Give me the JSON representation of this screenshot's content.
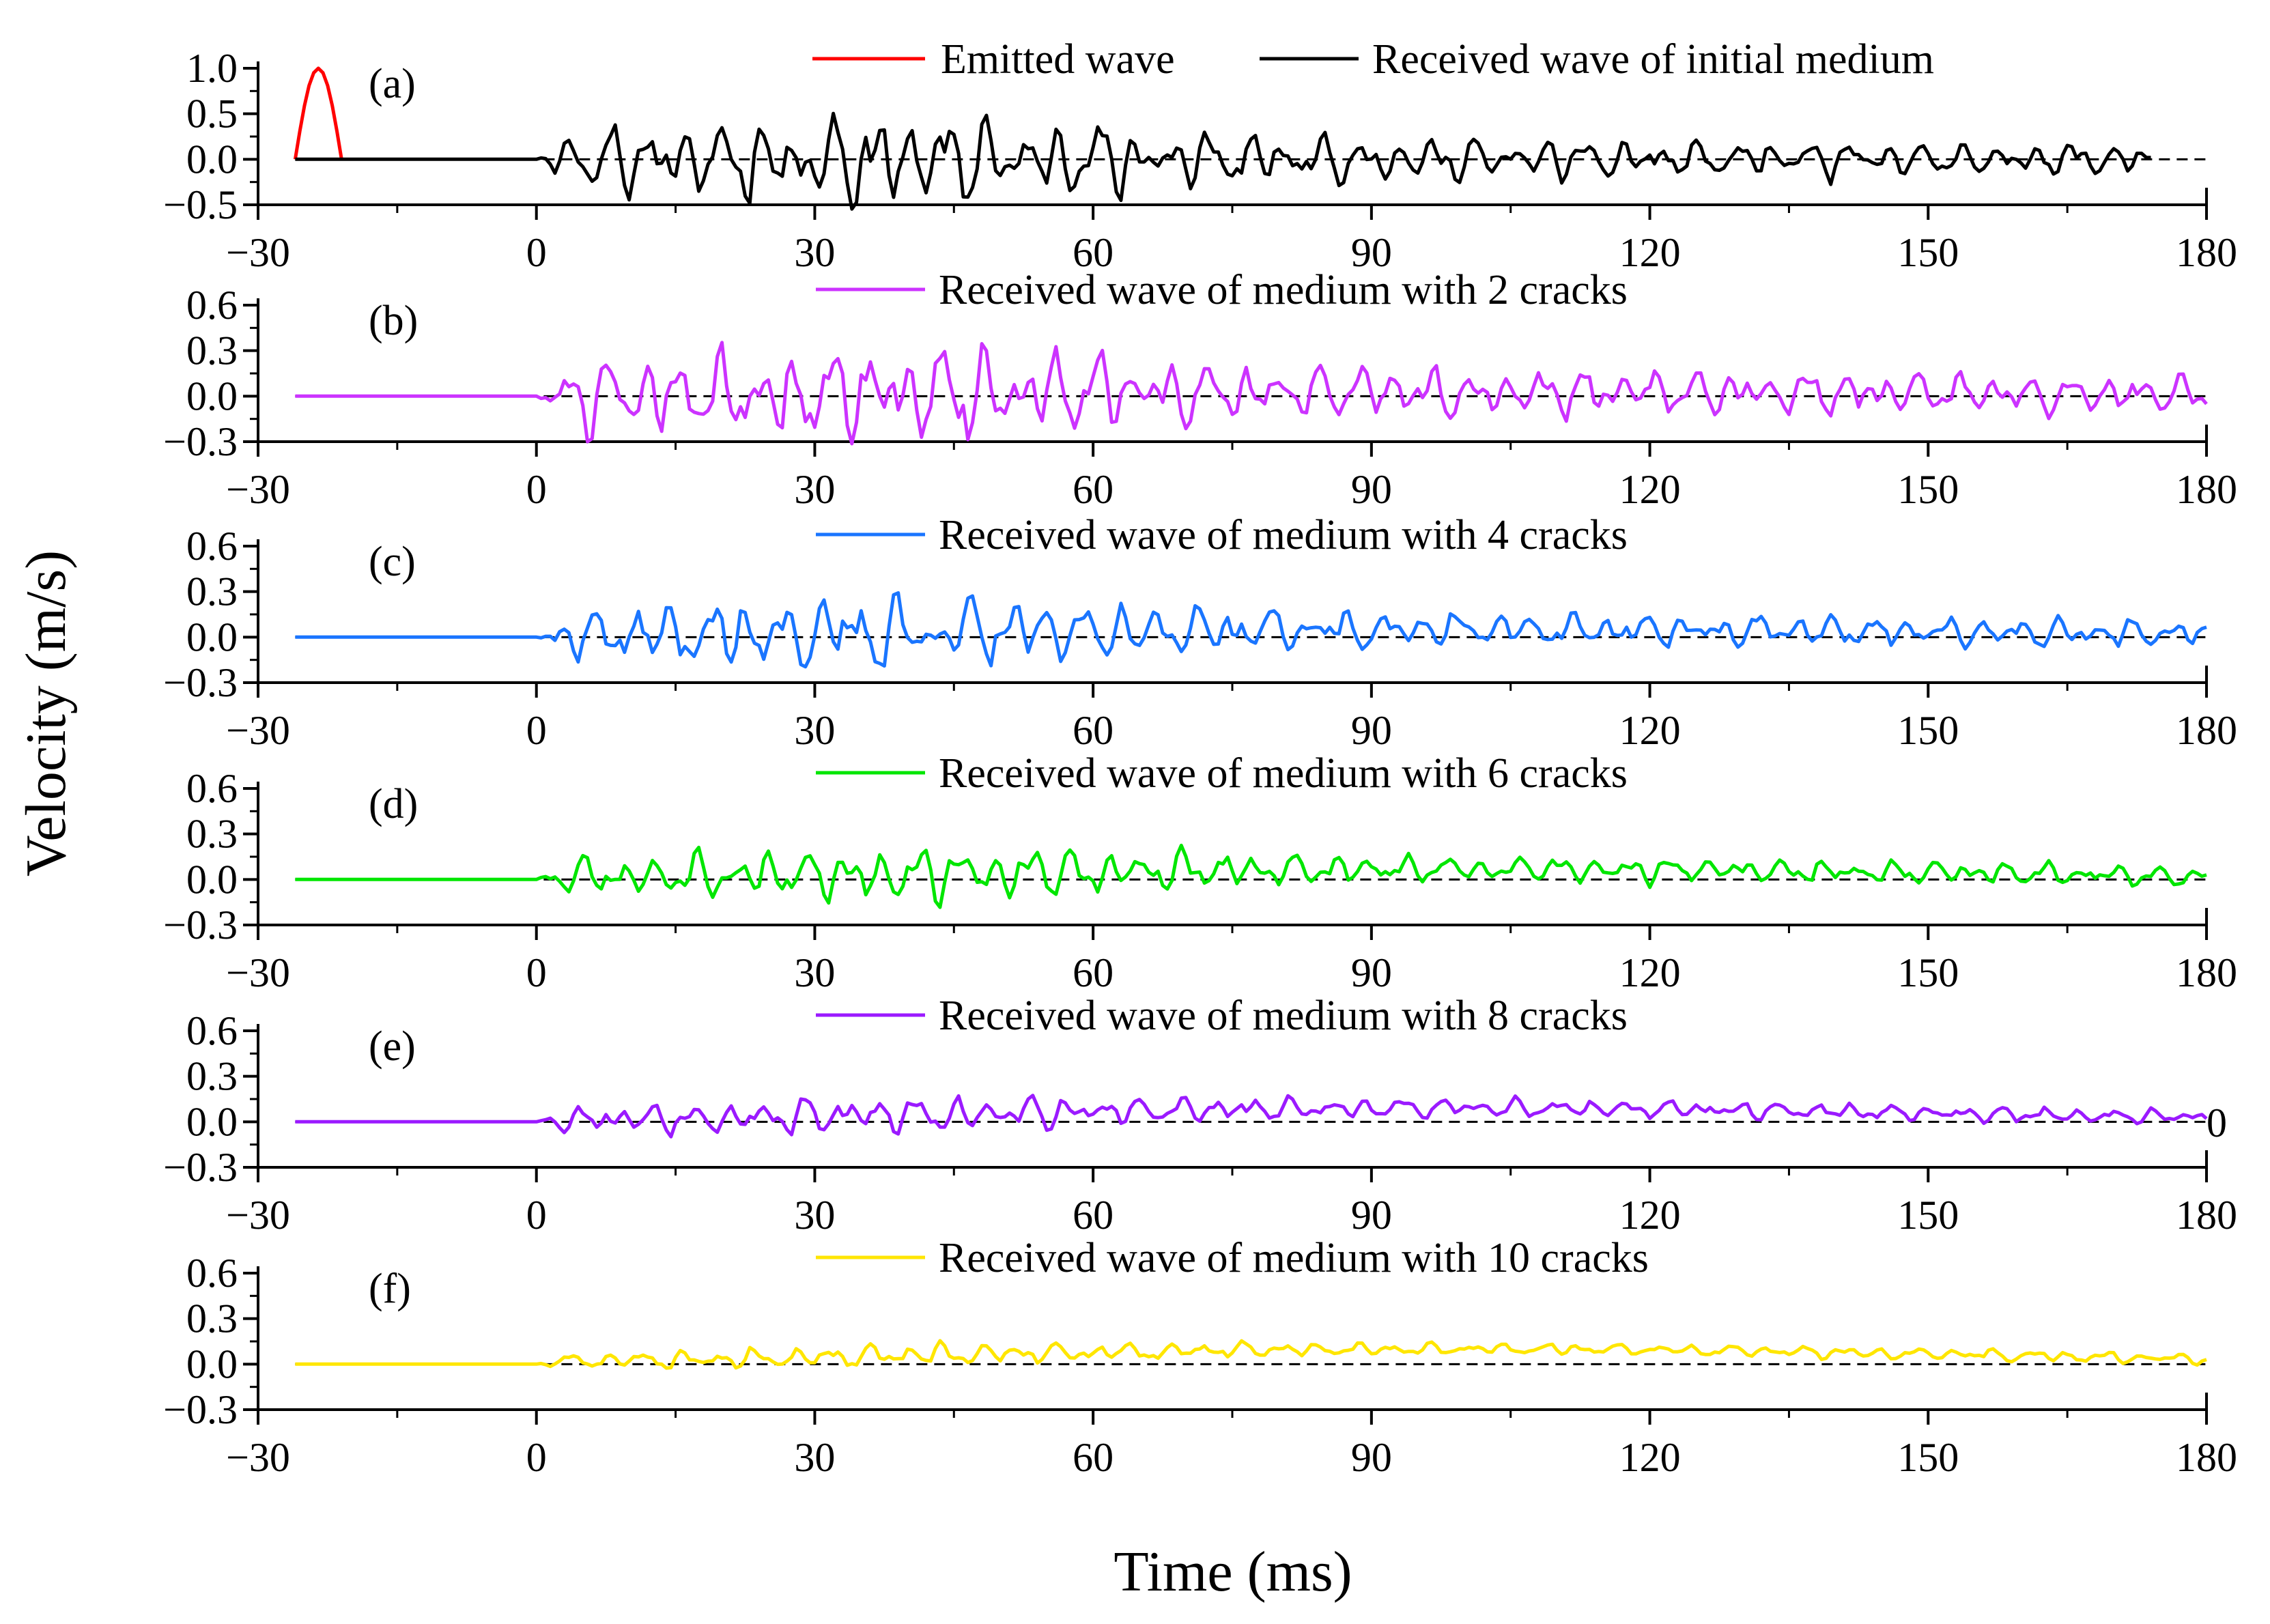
{
  "chart_data": {
    "type": "line",
    "xlabel": "Time (ms)",
    "ylabel": "Velocity (m/s)",
    "xlim": [
      -30,
      180
    ],
    "xticks": [
      -30,
      0,
      30,
      60,
      90,
      120,
      150,
      180
    ],
    "stray_label": "0",
    "panels": [
      {
        "tag": "(a)",
        "ylim": [
          -0.5,
          1.0
        ],
        "yticks": [
          -0.5,
          0.0,
          0.5,
          1.0
        ],
        "ytick_labels": [
          "−0.5",
          "0.0",
          "0.5",
          "1.0"
        ],
        "legend": [
          "Emitted wave",
          "Received wave of initial medium"
        ],
        "series": [
          {
            "name": "Emitted wave",
            "color": "#ff0000",
            "x": [
              -26.0,
              -25.5,
              -25.0,
              -24.5,
              -24.0,
              -23.5,
              -23.0,
              -22.5,
              -22.0,
              -21.5,
              -21.0
            ],
            "values": [
              0.0,
              0.31,
              0.59,
              0.81,
              0.95,
              1.0,
              0.95,
              0.81,
              0.59,
              0.31,
              0.0
            ]
          },
          {
            "name": "Received wave of initial medium",
            "color": "#000000",
            "x_start": -26,
            "x_end": 174,
            "onset": 0,
            "amp": 0.5,
            "decay": 0.45,
            "bias": 0.0,
            "bias_pos": 0.5,
            "seed": 11
          }
        ]
      },
      {
        "tag": "(b)",
        "ylim": [
          -0.3,
          0.6
        ],
        "yticks": [
          -0.3,
          0.0,
          0.3,
          0.6
        ],
        "ytick_labels": [
          "−0.3",
          "0.0",
          "0.3",
          "0.6"
        ],
        "legend": [
          "Received wave of medium with 2 cracks"
        ],
        "series": [
          {
            "name": "Received wave of medium with 2 cracks",
            "color": "#cc33ff",
            "x_start": -26,
            "x_end": 180,
            "onset": 0,
            "amp": 0.32,
            "decay": 0.35,
            "bias": 0.03,
            "bias_pos": 0.55,
            "seed": 23
          }
        ]
      },
      {
        "tag": "(c)",
        "ylim": [
          -0.3,
          0.6
        ],
        "yticks": [
          -0.3,
          0.0,
          0.3,
          0.6
        ],
        "ytick_labels": [
          "−0.3",
          "0.0",
          "0.3",
          "0.6"
        ],
        "legend": [
          "Received wave of medium with 4 cracks"
        ],
        "series": [
          {
            "name": "Received wave of medium with 4 cracks",
            "color": "#1a75ff",
            "x_start": -26,
            "x_end": 180,
            "onset": 0,
            "amp": 0.24,
            "decay": 0.4,
            "bias": 0.05,
            "bias_pos": 0.6,
            "seed": 37
          }
        ]
      },
      {
        "tag": "(d)",
        "ylim": [
          -0.3,
          0.6
        ],
        "yticks": [
          -0.3,
          0.0,
          0.3,
          0.6
        ],
        "ytick_labels": [
          "−0.3",
          "0.0",
          "0.3",
          "0.6"
        ],
        "legend": [
          "Received wave of medium with 6 cracks"
        ],
        "series": [
          {
            "name": "Received wave of medium with 6 cracks",
            "color": "#00e600",
            "x_start": -26,
            "x_end": 180,
            "onset": 0,
            "amp": 0.18,
            "decay": 0.35,
            "bias": 0.07,
            "bias_pos": 0.5,
            "seed": 41
          }
        ]
      },
      {
        "tag": "(e)",
        "ylim": [
          -0.3,
          0.6
        ],
        "yticks": [
          -0.3,
          0.0,
          0.3,
          0.6
        ],
        "ytick_labels": [
          "−0.3",
          "0.0",
          "0.3",
          "0.6"
        ],
        "legend": [
          "Received wave of medium with 8 cracks"
        ],
        "series": [
          {
            "name": "Received wave of medium with 8 cracks",
            "color": "#9b1aff",
            "x_start": -26,
            "x_end": 180,
            "onset": 0,
            "amp": 0.12,
            "decay": 0.3,
            "bias": 0.09,
            "bias_pos": 0.5,
            "seed": 53
          }
        ]
      },
      {
        "tag": "(f)",
        "ylim": [
          -0.3,
          0.6
        ],
        "yticks": [
          -0.3,
          0.0,
          0.3,
          0.6
        ],
        "ytick_labels": [
          "−0.3",
          "0.0",
          "0.3",
          "0.6"
        ],
        "legend": [
          "Received wave of medium with 10 cracks"
        ],
        "series": [
          {
            "name": "Received wave of medium with 10 cracks",
            "color": "#ffe600",
            "x_start": -26,
            "x_end": 180,
            "onset": 0,
            "amp": 0.07,
            "decay": 0.15,
            "bias": 0.1,
            "bias_pos": 0.55,
            "seed": 67
          }
        ]
      }
    ]
  }
}
